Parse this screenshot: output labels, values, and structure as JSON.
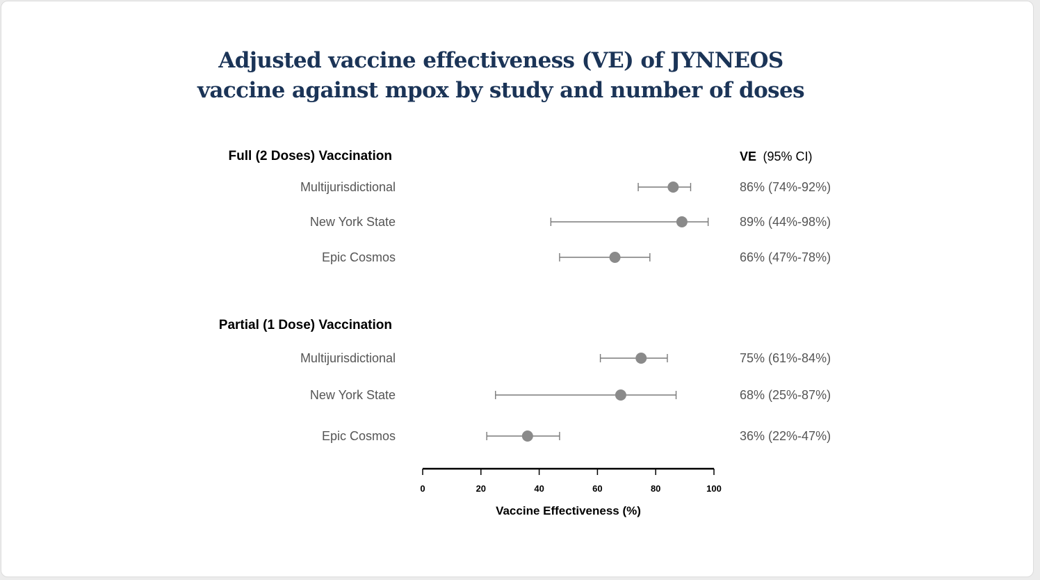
{
  "title": {
    "line1": "Adjusted vaccine effectiveness (VE) of JYNNEOS",
    "line2": "vaccine against mpox by study and number of doses"
  },
  "ve_header": {
    "bold": "VE",
    "rest": "(95% CI)"
  },
  "colors": {
    "title": "#1b3457",
    "marker": "#8a8a8a",
    "ci_line": "#7a7a7a",
    "label": "#555555",
    "axis": "#000000"
  },
  "chart_data": {
    "type": "forest",
    "title": "Adjusted vaccine effectiveness (VE) of JYNNEOS vaccine against mpox by study and number of doses",
    "xlabel": "Vaccine Effectiveness (%)",
    "xlim": [
      0,
      100
    ],
    "xticks": [
      "0",
      "20",
      "40",
      "60",
      "80",
      "100"
    ],
    "groups": [
      {
        "name": "Full (2 Doses) Vaccination",
        "rows": [
          {
            "study": "Multijurisdictional",
            "ve": 86,
            "lower": 74,
            "upper": 92,
            "label": "86% (74%-92%)"
          },
          {
            "study": "New York State",
            "ve": 89,
            "lower": 44,
            "upper": 98,
            "label": "89% (44%-98%)"
          },
          {
            "study": "Epic Cosmos",
            "ve": 66,
            "lower": 47,
            "upper": 78,
            "label": "66% (47%-78%)"
          }
        ]
      },
      {
        "name": "Partial (1 Dose) Vaccination",
        "rows": [
          {
            "study": "Multijurisdictional",
            "ve": 75,
            "lower": 61,
            "upper": 84,
            "label": "75% (61%-84%)"
          },
          {
            "study": "New York State",
            "ve": 68,
            "lower": 25,
            "upper": 87,
            "label": "68% (25%-87%)"
          },
          {
            "study": "Epic Cosmos",
            "ve": 36,
            "lower": 22,
            "upper": 47,
            "label": "36% (22%-47%)"
          }
        ]
      }
    ]
  }
}
